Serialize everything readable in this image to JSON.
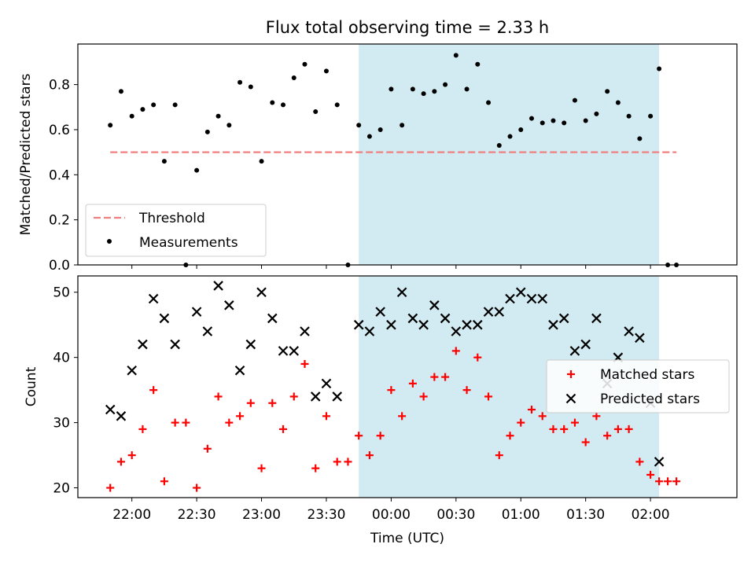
{
  "chart_data": [
    {
      "type": "scatter",
      "title": "Flux total observing time = 2.33 h",
      "xlabel": "",
      "ylabel": "Matched/Predicted stars",
      "ylim": [
        0,
        0.98
      ],
      "yticks": [
        "0.0",
        "0.2",
        "0.4",
        "0.6",
        "0.8"
      ],
      "legend_position": "lower-left",
      "threshold": {
        "name": "Threshold",
        "value": 0.5,
        "x_range": [
          "21:50",
          "02:12"
        ],
        "color": "#f08080"
      },
      "highlight": {
        "from": "23:45",
        "to": "02:04",
        "color": "#add8e6"
      },
      "series": [
        {
          "name": "Measurements",
          "color": "#000000",
          "points": [
            [
              "21:50",
              0.62
            ],
            [
              "21:55",
              0.77
            ],
            [
              "22:00",
              0.66
            ],
            [
              "22:05",
              0.69
            ],
            [
              "22:10",
              0.71
            ],
            [
              "22:15",
              0.46
            ],
            [
              "22:20",
              0.71
            ],
            [
              "22:25",
              0.0
            ],
            [
              "22:30",
              0.42
            ],
            [
              "22:35",
              0.59
            ],
            [
              "22:40",
              0.66
            ],
            [
              "22:45",
              0.62
            ],
            [
              "22:50",
              0.81
            ],
            [
              "22:55",
              0.79
            ],
            [
              "23:00",
              0.46
            ],
            [
              "23:05",
              0.72
            ],
            [
              "23:10",
              0.71
            ],
            [
              "23:15",
              0.83
            ],
            [
              "23:20",
              0.89
            ],
            [
              "23:25",
              0.68
            ],
            [
              "23:30",
              0.86
            ],
            [
              "23:35",
              0.71
            ],
            [
              "23:40",
              0.0
            ],
            [
              "23:45",
              0.62
            ],
            [
              "23:50",
              0.57
            ],
            [
              "23:55",
              0.6
            ],
            [
              "00:00",
              0.78
            ],
            [
              "00:05",
              0.62
            ],
            [
              "00:10",
              0.78
            ],
            [
              "00:15",
              0.76
            ],
            [
              "00:20",
              0.77
            ],
            [
              "00:25",
              0.8
            ],
            [
              "00:30",
              0.93
            ],
            [
              "00:35",
              0.78
            ],
            [
              "00:40",
              0.89
            ],
            [
              "00:45",
              0.72
            ],
            [
              "00:50",
              0.53
            ],
            [
              "00:55",
              0.57
            ],
            [
              "01:00",
              0.6
            ],
            [
              "01:05",
              0.65
            ],
            [
              "01:10",
              0.63
            ],
            [
              "01:15",
              0.64
            ],
            [
              "01:20",
              0.63
            ],
            [
              "01:25",
              0.73
            ],
            [
              "01:30",
              0.64
            ],
            [
              "01:35",
              0.67
            ],
            [
              "01:40",
              0.77
            ],
            [
              "01:45",
              0.72
            ],
            [
              "01:50",
              0.66
            ],
            [
              "01:55",
              0.56
            ],
            [
              "02:00",
              0.66
            ],
            [
              "02:04",
              0.87
            ],
            [
              "02:08",
              0.0
            ],
            [
              "02:12",
              0.0
            ]
          ]
        }
      ]
    },
    {
      "type": "scatter",
      "title": "",
      "xlabel": "Time (UTC)",
      "ylabel": "Count",
      "ylim": [
        18.5,
        52.5
      ],
      "yticks": [
        "20",
        "30",
        "40",
        "50"
      ],
      "xticks": [
        "22:00",
        "22:30",
        "23:00",
        "23:30",
        "00:00",
        "00:30",
        "01:00",
        "01:30",
        "02:00"
      ],
      "xlim": [
        "21:35",
        "02:40"
      ],
      "legend_position": "center-right",
      "highlight": {
        "from": "23:45",
        "to": "02:04",
        "color": "#add8e6"
      },
      "series": [
        {
          "name": "Matched stars",
          "marker": "plus",
          "color": "#ff0000",
          "points": [
            [
              "21:50",
              20
            ],
            [
              "21:55",
              24
            ],
            [
              "22:00",
              25
            ],
            [
              "22:05",
              29
            ],
            [
              "22:10",
              35
            ],
            [
              "22:15",
              21
            ],
            [
              "22:20",
              30
            ],
            [
              "22:25",
              30
            ],
            [
              "22:30",
              20
            ],
            [
              "22:35",
              26
            ],
            [
              "22:40",
              34
            ],
            [
              "22:45",
              30
            ],
            [
              "22:50",
              31
            ],
            [
              "22:55",
              33
            ],
            [
              "23:00",
              23
            ],
            [
              "23:05",
              33
            ],
            [
              "23:10",
              29
            ],
            [
              "23:15",
              34
            ],
            [
              "23:20",
              39
            ],
            [
              "23:25",
              23
            ],
            [
              "23:30",
              31
            ],
            [
              "23:35",
              24
            ],
            [
              "23:40",
              24
            ],
            [
              "23:45",
              28
            ],
            [
              "23:50",
              25
            ],
            [
              "23:55",
              28
            ],
            [
              "00:00",
              35
            ],
            [
              "00:05",
              31
            ],
            [
              "00:10",
              36
            ],
            [
              "00:15",
              34
            ],
            [
              "00:20",
              37
            ],
            [
              "00:25",
              37
            ],
            [
              "00:30",
              41
            ],
            [
              "00:35",
              35
            ],
            [
              "00:40",
              40
            ],
            [
              "00:45",
              34
            ],
            [
              "00:50",
              25
            ],
            [
              "00:55",
              28
            ],
            [
              "01:00",
              30
            ],
            [
              "01:05",
              32
            ],
            [
              "01:10",
              31
            ],
            [
              "01:15",
              29
            ],
            [
              "01:20",
              29
            ],
            [
              "01:25",
              30
            ],
            [
              "01:30",
              27
            ],
            [
              "01:35",
              31
            ],
            [
              "01:40",
              28
            ],
            [
              "01:45",
              29
            ],
            [
              "01:50",
              29
            ],
            [
              "01:55",
              24
            ],
            [
              "02:00",
              22
            ],
            [
              "02:04",
              21
            ],
            [
              "02:08",
              21
            ],
            [
              "02:12",
              21
            ]
          ]
        },
        {
          "name": "Predicted stars",
          "marker": "x",
          "color": "#000000",
          "points": [
            [
              "21:50",
              32
            ],
            [
              "21:55",
              31
            ],
            [
              "22:00",
              38
            ],
            [
              "22:05",
              42
            ],
            [
              "22:10",
              49
            ],
            [
              "22:15",
              46
            ],
            [
              "22:20",
              42
            ],
            [
              "22:30",
              47
            ],
            [
              "22:35",
              44
            ],
            [
              "22:40",
              51
            ],
            [
              "22:45",
              48
            ],
            [
              "22:50",
              38
            ],
            [
              "22:55",
              42
            ],
            [
              "23:00",
              50
            ],
            [
              "23:05",
              46
            ],
            [
              "23:10",
              41
            ],
            [
              "23:15",
              41
            ],
            [
              "23:20",
              44
            ],
            [
              "23:25",
              34
            ],
            [
              "23:30",
              36
            ],
            [
              "23:35",
              34
            ],
            [
              "23:45",
              45
            ],
            [
              "23:50",
              44
            ],
            [
              "23:55",
              47
            ],
            [
              "00:00",
              45
            ],
            [
              "00:05",
              50
            ],
            [
              "00:10",
              46
            ],
            [
              "00:15",
              45
            ],
            [
              "00:20",
              48
            ],
            [
              "00:25",
              46
            ],
            [
              "00:30",
              44
            ],
            [
              "00:35",
              45
            ],
            [
              "00:40",
              45
            ],
            [
              "00:45",
              47
            ],
            [
              "00:50",
              47
            ],
            [
              "00:55",
              49
            ],
            [
              "01:00",
              50
            ],
            [
              "01:05",
              49
            ],
            [
              "01:10",
              49
            ],
            [
              "01:15",
              45
            ],
            [
              "01:20",
              46
            ],
            [
              "01:25",
              41
            ],
            [
              "01:30",
              42
            ],
            [
              "01:35",
              46
            ],
            [
              "01:40",
              36
            ],
            [
              "01:45",
              40
            ],
            [
              "01:50",
              44
            ],
            [
              "01:55",
              43
            ],
            [
              "02:00",
              33
            ],
            [
              "02:04",
              24
            ]
          ]
        }
      ]
    }
  ]
}
